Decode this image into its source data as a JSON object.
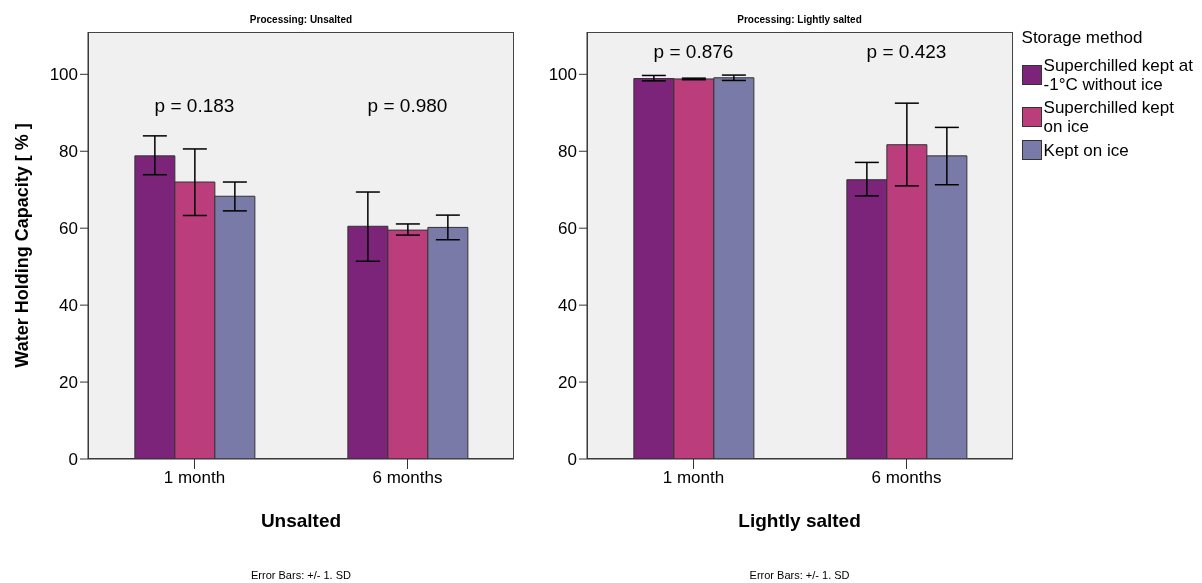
{
  "chart_data": [
    {
      "type": "bar",
      "title": "Processing: Unsalted",
      "xlabel": "Unsalted",
      "ylabel": "Water Holding Capacity [ % ]",
      "categories": [
        "1 month",
        "6 months"
      ],
      "series": [
        {
          "color": "#7b2479",
          "values": [
            78.8,
            60.5
          ],
          "errors": [
            [
              73.9,
              84.0
            ],
            [
              51.4,
              69.4
            ]
          ]
        },
        {
          "color": "#bb3d7b",
          "values": [
            72.0,
            59.5
          ],
          "errors": [
            [
              63.3,
              80.6
            ],
            [
              58.2,
              61.1
            ]
          ]
        },
        {
          "color": "#7a7aa8",
          "values": [
            68.3,
            60.2
          ],
          "errors": [
            [
              64.5,
              72.0
            ],
            [
              57.0,
              63.4
            ]
          ]
        }
      ],
      "ylim": [
        0,
        111
      ],
      "yticks": [
        0,
        20,
        40,
        60,
        80,
        100
      ],
      "grid": false,
      "legend": false,
      "annotations": [
        "p = 0.183",
        "p = 0.980",
        "Error Bars: +/- 1. SD"
      ]
    },
    {
      "type": "bar",
      "title": "Processing: Lightly salted",
      "xlabel": "Lightly salted",
      "legend_title": "Storage method",
      "categories": [
        "1 month",
        "6 months"
      ],
      "series": [
        {
          "name": "Superchilled kept at -1°C without ice",
          "color": "#7b2479",
          "values": [
            98.9,
            72.6
          ],
          "errors": [
            [
              98.3,
              99.7
            ],
            [
              68.4,
              77.1
            ]
          ]
        },
        {
          "name": "Superchilled kept on ice",
          "color": "#bb3d7b",
          "values": [
            98.8,
            81.7
          ],
          "errors": [
            [
              98.6,
              99.0
            ],
            [
              71.0,
              92.5
            ]
          ]
        },
        {
          "name": "Kept on ice",
          "color": "#7a7aa8",
          "values": [
            99.1,
            78.8
          ],
          "errors": [
            [
              98.4,
              99.8
            ],
            [
              71.3,
              86.2
            ]
          ]
        }
      ],
      "ylim": [
        0,
        111
      ],
      "yticks": [
        0,
        20,
        40,
        60,
        80,
        100
      ],
      "grid": false,
      "legend": "right",
      "annotations": [
        "p = 0.876",
        "p = 0.423",
        "Error Bars: +/- 1. SD"
      ]
    }
  ]
}
